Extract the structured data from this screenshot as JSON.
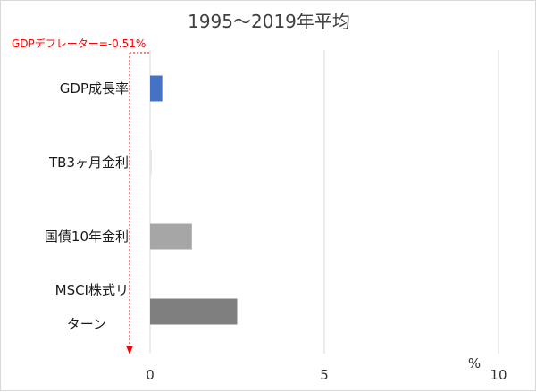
{
  "chart_data": {
    "type": "bar",
    "orientation": "horizontal",
    "title": "1995～2019年平均",
    "categories": [
      [
        "GDP成長率"
      ],
      [
        "TB3ヶ月金利"
      ],
      [
        "国債10年金利"
      ],
      [
        "MSCI株式リ",
        "ターン"
      ]
    ],
    "values": [
      0.35,
      0.03,
      1.2,
      2.5
    ],
    "bar_colors": [
      "#4472c4",
      "#e8e8e8",
      "#a6a6a6",
      "#7f7f7f"
    ],
    "x_ticks": [
      "0",
      "5",
      "10"
    ],
    "x_unit": "%",
    "xlim": [
      0,
      10
    ],
    "grid": true,
    "annotation": {
      "text": "GDPデフレーター=-0.51%",
      "value": -0.51,
      "color": "#ff0000"
    }
  }
}
